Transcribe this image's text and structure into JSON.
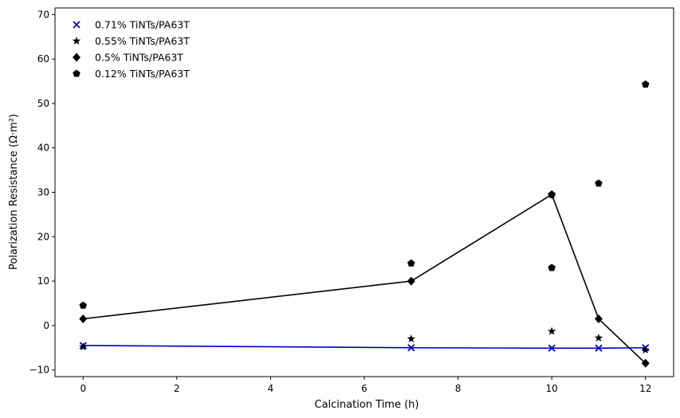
{
  "chart_data": {
    "type": "scatter",
    "title": "",
    "xlabel": "Calcination Time (h)",
    "ylabel": "Polarization Resistance (Ω·m²)",
    "xlim": [
      -0.6,
      12.6
    ],
    "ylim": [
      -11.5,
      71.5
    ],
    "xticks": [
      0,
      2,
      4,
      6,
      8,
      10,
      12
    ],
    "yticks": [
      -10,
      0,
      10,
      20,
      30,
      40,
      50,
      60,
      70
    ],
    "grid": false,
    "legend_position": "top-left",
    "series": [
      {
        "name": "0.71% TiNTs/PA63T",
        "marker": "x",
        "color": "#0000cc",
        "line": true,
        "x": [
          0,
          7,
          10,
          11,
          12
        ],
        "y": [
          -4.5,
          -5.0,
          -5.1,
          -5.1,
          -5.0
        ]
      },
      {
        "name": "0.55% TiNTs/PA63T",
        "marker": "star",
        "color": "#000000",
        "line": false,
        "x": [
          0,
          7,
          10,
          11,
          12
        ],
        "y": [
          -4.8,
          -3.0,
          -1.3,
          -2.8,
          -5.5
        ]
      },
      {
        "name": "0.5% TiNTs/PA63T",
        "marker": "diamond",
        "color": "#000000",
        "line": true,
        "x": [
          0,
          7,
          10,
          11,
          12
        ],
        "y": [
          1.5,
          10.0,
          29.5,
          1.5,
          -8.5
        ]
      },
      {
        "name": "0.12% TiNTs/PA63T",
        "marker": "pentagon",
        "color": "#000000",
        "line": false,
        "x": [
          0,
          7,
          10,
          10,
          11,
          12
        ],
        "y": [
          4.5,
          14.0,
          13.0,
          29.5,
          32.0,
          54.3
        ]
      }
    ]
  }
}
